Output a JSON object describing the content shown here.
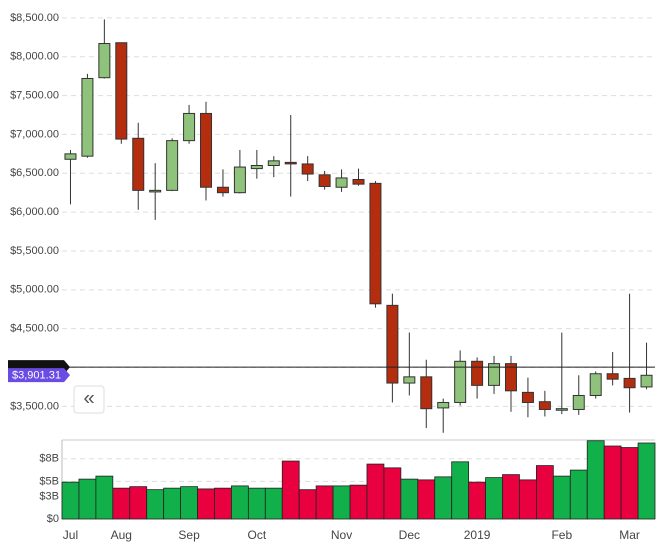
{
  "chart_data": [
    {
      "type": "candlestick",
      "open": [
        6680,
        6720,
        7730,
        8180,
        6950,
        6260,
        6280,
        6920,
        7270,
        6320,
        6250,
        6560,
        6600,
        6640,
        6620,
        6480,
        6320,
        6420,
        6370,
        4800,
        3800,
        3880,
        3480,
        3550,
        4080,
        3770,
        4050,
        3680,
        3560,
        3450,
        3460,
        3640,
        3920,
        3860,
        3750
      ],
      "high": [
        6800,
        7780,
        8480,
        8180,
        7150,
        6630,
        6950,
        7380,
        7420,
        6550,
        6800,
        6800,
        6720,
        7250,
        6720,
        6530,
        6550,
        6560,
        6400,
        4950,
        4450,
        4100,
        3600,
        4220,
        4130,
        4150,
        4150,
        3870,
        3700,
        4450,
        3900,
        3950,
        4200,
        4950,
        4320
      ],
      "low": [
        6100,
        6700,
        7720,
        6880,
        6030,
        5900,
        6270,
        6880,
        6150,
        6200,
        6240,
        6430,
        6450,
        6200,
        6400,
        6290,
        6260,
        6340,
        4770,
        3550,
        3640,
        3220,
        3160,
        3510,
        3600,
        3660,
        3430,
        3360,
        3370,
        3400,
        3390,
        3600,
        3770,
        3420,
        3720
      ],
      "close": [
        6750,
        7720,
        8170,
        6940,
        6280,
        6280,
        6920,
        7270,
        6320,
        6250,
        6580,
        6600,
        6660,
        6630,
        6490,
        6330,
        6440,
        6360,
        4820,
        3800,
        3880,
        3470,
        3550,
        4080,
        3770,
        4050,
        3700,
        3550,
        3460,
        3470,
        3640,
        3920,
        3850,
        3740,
        3900
      ],
      "up_color": "#8fc27a",
      "down_color": "#b52d0f",
      "ylim": [
        3170,
        8730
      ],
      "yticks": [
        {
          "value": 3500,
          "label": "$3,500.00"
        },
        {
          "value": 4000,
          "label": "$4,000.00"
        },
        {
          "value": 4500,
          "label": "$4,500.00"
        },
        {
          "value": 5000,
          "label": "$5,000.00"
        },
        {
          "value": 5500,
          "label": "$5,500.00"
        },
        {
          "value": 6000,
          "label": "$6,000.00"
        },
        {
          "value": 6500,
          "label": "$6,500.00"
        },
        {
          "value": 7000,
          "label": "$7,000.00"
        },
        {
          "value": 7500,
          "label": "$7,500.00"
        },
        {
          "value": 8000,
          "label": "$8,000.00"
        },
        {
          "value": 8500,
          "label": "$8,500.00"
        }
      ],
      "grid": true,
      "price_line": {
        "value": 3901.31,
        "label": "$3,901.31"
      },
      "collapse_button": "«"
    },
    {
      "type": "bar",
      "categories": [
        "Jul",
        null,
        null,
        "Aug",
        null,
        null,
        null,
        "Sep",
        null,
        null,
        null,
        "Oct",
        null,
        null,
        null,
        null,
        "Nov",
        null,
        null,
        null,
        "Dec",
        null,
        null,
        null,
        "2019",
        null,
        null,
        null,
        null,
        "Feb",
        null,
        null,
        null,
        "Mar",
        null
      ],
      "values": [
        4.9,
        5.3,
        5.7,
        4.1,
        4.3,
        3.9,
        4.1,
        4.3,
        4.0,
        4.1,
        4.4,
        4.1,
        4.1,
        7.7,
        3.9,
        4.4,
        4.4,
        4.5,
        7.3,
        6.8,
        5.3,
        5.2,
        5.6,
        7.6,
        4.9,
        5.5,
        5.9,
        5.2,
        7.1,
        5.7,
        6.5,
        10.4,
        9.7,
        9.5,
        10.1
      ],
      "up_color": "#12b04a",
      "down_color": "#e8003f",
      "ylim": [
        0,
        10.5
      ],
      "yticks": [
        {
          "value": 0,
          "label": "$0"
        },
        {
          "value": 3,
          "label": "$3B"
        },
        {
          "value": 5,
          "label": "$5B"
        },
        {
          "value": 8,
          "label": "$8B"
        }
      ],
      "grid": true
    }
  ]
}
